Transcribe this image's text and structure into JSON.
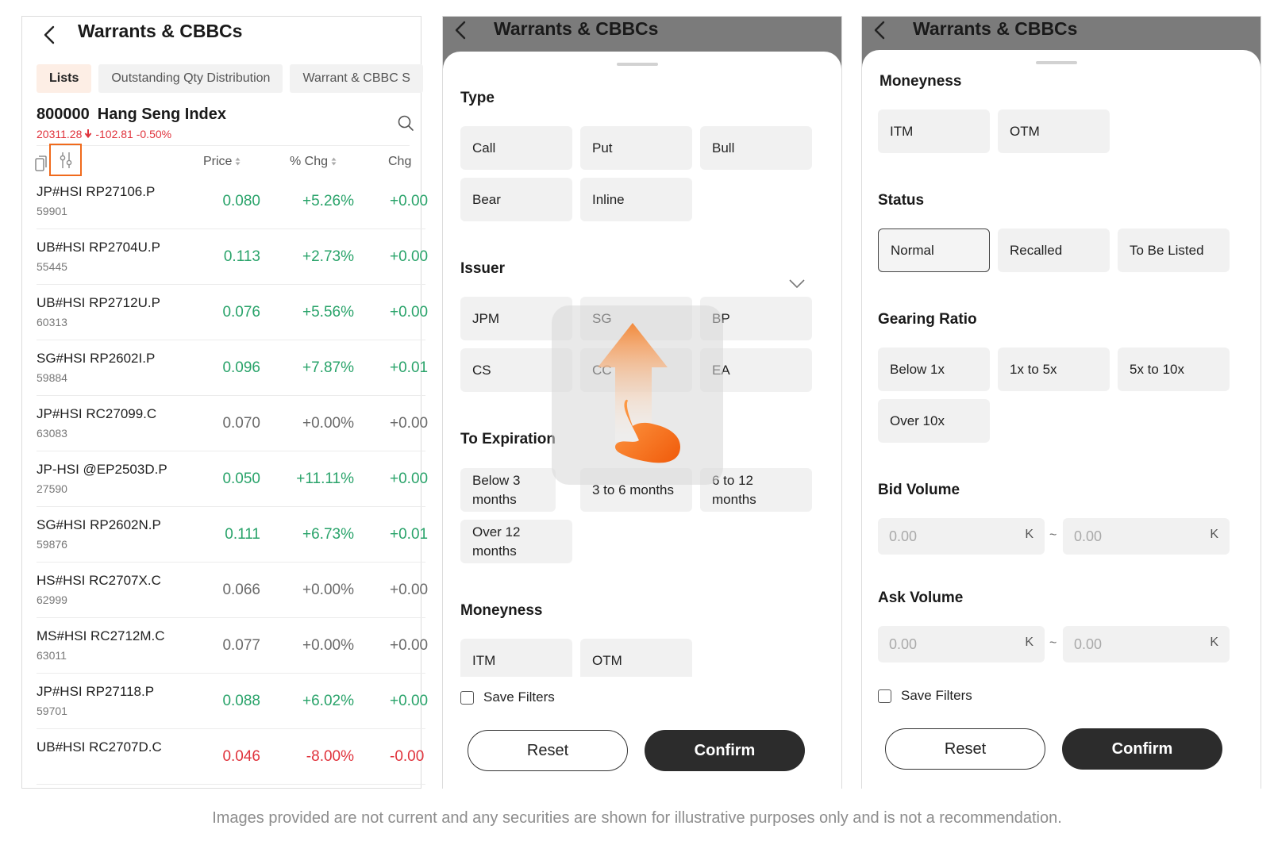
{
  "screen1": {
    "title": "Warrants & CBBCs",
    "tabs": [
      "Lists",
      "Outstanding Qty Distribution",
      "Warrant & CBBC S"
    ],
    "index": {
      "code": "800000",
      "name": "Hang Seng Index",
      "last": "20311.28",
      "change": "-102.81",
      "change_pct": "-0.50%"
    },
    "columns": {
      "price": "Price",
      "pct_chg": "% Chg",
      "chg": "Chg"
    },
    "rows": [
      {
        "name": "JP#HSI  RP27106.P",
        "code": "59901",
        "price": "0.080",
        "pct": "+5.26%",
        "chg": "+0.00",
        "trend": "up"
      },
      {
        "name": "UB#HSI  RP2704U.P",
        "code": "55445",
        "price": "0.113",
        "pct": "+2.73%",
        "chg": "+0.00",
        "trend": "up"
      },
      {
        "name": "UB#HSI  RP2712U.P",
        "code": "60313",
        "price": "0.076",
        "pct": "+5.56%",
        "chg": "+0.00",
        "trend": "up"
      },
      {
        "name": "SG#HSI  RP2602I.P",
        "code": "59884",
        "price": "0.096",
        "pct": "+7.87%",
        "chg": "+0.01",
        "trend": "up"
      },
      {
        "name": "JP#HSI  RC27099.C",
        "code": "63083",
        "price": "0.070",
        "pct": "+0.00%",
        "chg": "+0.00",
        "trend": "flat"
      },
      {
        "name": "JP-HSI @EP2503D.P",
        "code": "27590",
        "price": "0.050",
        "pct": "+11.11%",
        "chg": "+0.00",
        "trend": "up"
      },
      {
        "name": "SG#HSI  RP2602N.P",
        "code": "59876",
        "price": "0.111",
        "pct": "+6.73%",
        "chg": "+0.01",
        "trend": "up"
      },
      {
        "name": "HS#HSI  RC2707X.C",
        "code": "62999",
        "price": "0.066",
        "pct": "+0.00%",
        "chg": "+0.00",
        "trend": "flat"
      },
      {
        "name": "MS#HSI  RC2712M.C",
        "code": "63011",
        "price": "0.077",
        "pct": "+0.00%",
        "chg": "+0.00",
        "trend": "flat"
      },
      {
        "name": "JP#HSI  RP27118.P",
        "code": "59701",
        "price": "0.088",
        "pct": "+6.02%",
        "chg": "+0.00",
        "trend": "up"
      },
      {
        "name": "UB#HSI  RC2707D.C",
        "code": "",
        "price": "0.046",
        "pct": "-8.00%",
        "chg": "-0.00",
        "trend": "down"
      }
    ]
  },
  "screen2": {
    "title": "Warrants & CBBCs",
    "type_label": "Type",
    "types": [
      "Call",
      "Put",
      "Bull",
      "Bear",
      "Inline"
    ],
    "issuer_label": "Issuer",
    "issuers": [
      "JPM",
      "SG",
      "BP",
      "CS",
      "CC",
      "EA"
    ],
    "expiration_label": "To Expiration",
    "expirations": [
      "Below 3 months",
      "3 to 6 months",
      "6 to 12 months",
      "Over 12 months"
    ],
    "moneyness_label": "Moneyness",
    "moneyness": [
      "ITM",
      "OTM"
    ],
    "save_filters": "Save Filters",
    "reset": "Reset",
    "confirm": "Confirm"
  },
  "screen3": {
    "title": "Warrants & CBBCs",
    "moneyness_label": "Moneyness",
    "moneyness": [
      "ITM",
      "OTM"
    ],
    "status_label": "Status",
    "status": [
      "Normal",
      "Recalled",
      "To Be Listed"
    ],
    "gearing_label": "Gearing Ratio",
    "gearing": [
      "Below 1x",
      "1x to 5x",
      "5x to 10x",
      "Over 10x"
    ],
    "bid_label": "Bid Volume",
    "ask_label": "Ask Volume",
    "vol_placeholder": "0.00",
    "vol_unit": "K",
    "range_sep": "~",
    "save_filters": "Save Filters",
    "reset": "Reset",
    "confirm": "Confirm"
  },
  "colors": {
    "up": "#29a36a",
    "down": "#e0333c",
    "accent": "#f06a1c",
    "dark_button": "#2c2c2c"
  },
  "disclaimer": "Images provided are not current and any securities are shown for illustrative purposes only and is not a recommendation."
}
